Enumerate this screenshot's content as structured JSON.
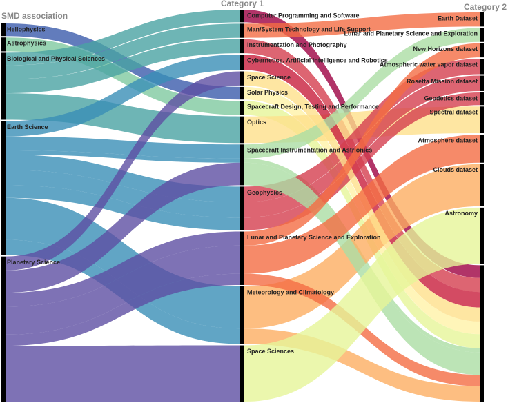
{
  "chart_data": {
    "type": "parcats",
    "dimensions": [
      {
        "label": "SMD association",
        "categories": [
          "Heliophysics",
          "Astrophysics",
          "Biological and Physical Sciences",
          "Earth Science",
          "Planetary Science"
        ],
        "colors": [
          "#3b5bab",
          "#7fc9a0",
          "#4aa3a2",
          "#3a8fb7",
          "#5e4fa2"
        ]
      },
      {
        "label": "Category 1",
        "categories": [
          "Computer Programming and Software",
          "Man/System Technology and Life Support",
          "Instrumentation and Photography",
          "Cybernetics, Artificial Intelligence and Robotics",
          "Space Science",
          "Solar Physics",
          "Spacecraft Design, Testing and Performance",
          "Optics",
          "Spacecraft Instrumentation and Astrionics",
          "Geophysics",
          "Lunar and Planetary Science and Exploration",
          "Meteorology and Climatology",
          "Space Sciences"
        ],
        "colors": [
          "#9e0142",
          "#f46d43",
          "#d53e4f",
          "#c81e3c",
          "#fee08b",
          "#fff3a8",
          "#e6f598",
          "#fee08b",
          "#abdda4",
          "#d53e4f",
          "#f46d43",
          "#fdae61",
          "#e6f598"
        ]
      },
      {
        "label": "Category 2",
        "categories": [
          "Earth Dataset",
          "Lunar and Planetary Science and Exploration",
          "New Horizons dataset",
          "Atmospheric water vapor dataset",
          "Rosetta Mission dataset",
          "Geodetics dataset",
          "Spectral dataset",
          "Atmosphere dataset",
          "Clouds dataset",
          "Astronomy",
          null
        ]
      }
    ],
    "flows": [
      {
        "path": [
          "Heliophysics",
          "Solar Physics",
          null
        ],
        "count": 18
      },
      {
        "path": [
          "Astrophysics",
          "Spacecraft Design, Testing and Performance",
          null
        ],
        "count": 20
      },
      {
        "path": [
          "Biological and Physical Sciences",
          "Computer Programming and Software",
          null
        ],
        "count": 18
      },
      {
        "path": [
          "Biological and Physical Sciences",
          "Man/System Technology and Life Support",
          "Earth Dataset"
        ],
        "count": 20
      },
      {
        "path": [
          "Biological and Physical Sciences",
          "Instrumentation and Photography",
          null
        ],
        "count": 20
      },
      {
        "path": [
          "Biological and Physical Sciences",
          "Optics",
          "Spectral dataset"
        ],
        "count": 38
      },
      {
        "path": [
          "Earth Science",
          "Cybernetics, Artificial Intelligence and Robotics",
          null
        ],
        "count": 22
      },
      {
        "path": [
          "Earth Science",
          "Spacecraft Instrumentation and Astrionics",
          "Lunar and Planetary Science and Exploration"
        ],
        "count": 20
      },
      {
        "path": [
          "Earth Science",
          "Spacecraft Instrumentation and Astrionics",
          null
        ],
        "count": 6
      },
      {
        "path": [
          "Earth Science",
          "Geophysics",
          "Atmospheric water vapor dataset"
        ],
        "count": 22
      },
      {
        "path": [
          "Earth Science",
          "Geophysics",
          "Rosetta Mission dataset"
        ],
        "count": 22
      },
      {
        "path": [
          "Earth Science",
          "Geophysics",
          "Geodetics dataset"
        ],
        "count": 18
      },
      {
        "path": [
          "Earth Science",
          "Meteorology and Climatology",
          "Clouds dataset"
        ],
        "count": 60
      },
      {
        "path": [
          "Earth Science",
          "Meteorology and Climatology",
          null
        ],
        "count": 22
      },
      {
        "path": [
          "Planetary Science",
          "Space Science",
          null
        ],
        "count": 20
      },
      {
        "path": [
          "Planetary Science",
          "Spacecraft Instrumentation and Astrionics",
          null
        ],
        "count": 32
      },
      {
        "path": [
          "Planetary Science",
          "Lunar and Planetary Science and Exploration",
          "New Horizons dataset"
        ],
        "count": 20
      },
      {
        "path": [
          "Planetary Science",
          "Lunar and Planetary Science and Exploration",
          "Atmosphere dataset"
        ],
        "count": 40
      },
      {
        "path": [
          "Planetary Science",
          "Lunar and Planetary Science and Exploration",
          null
        ],
        "count": 16
      },
      {
        "path": [
          "Planetary Science",
          "Space Sciences",
          "Astronomy"
        ],
        "count": 80
      }
    ]
  }
}
